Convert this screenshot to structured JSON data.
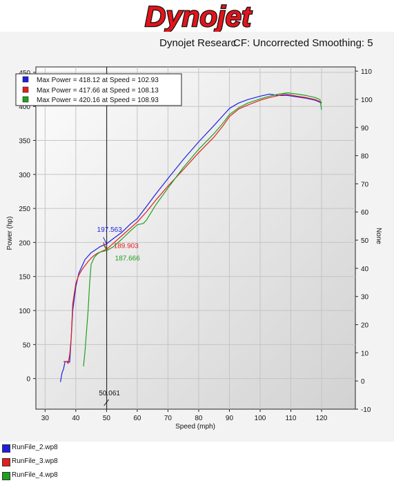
{
  "logo": {
    "text": "Dynojet"
  },
  "header": {
    "left_text": "Dynojet Researc",
    "right_text": "CF: Uncorrected Smoothing: 5"
  },
  "files": [
    {
      "label": "RunFile_2.wp8",
      "color": "#1f1fe0"
    },
    {
      "label": "RunFile_3.wp8",
      "color": "#e01f1f"
    },
    {
      "label": "RunFile_4.wp8",
      "color": "#1fa01f"
    }
  ],
  "chart_data": {
    "type": "line",
    "xlabel": "Speed (mph)",
    "ylabel": "Power (hp)",
    "y2label": "None",
    "xlim": [
      27,
      131
    ],
    "ylim": [
      -45,
      458
    ],
    "y2lim": [
      -10,
      111.5
    ],
    "x_ticks": [
      30,
      40,
      50,
      60,
      70,
      80,
      90,
      100,
      110,
      120
    ],
    "y_ticks": [
      0,
      50,
      100,
      150,
      200,
      250,
      300,
      350,
      400,
      450
    ],
    "y2_ticks": [
      -10,
      0,
      10,
      20,
      30,
      40,
      50,
      60,
      70,
      80,
      90,
      100,
      110
    ],
    "grid": true,
    "legend_position": "top-left",
    "legend": [
      "Max Power = 418.12 at Speed = 102.93",
      "Max Power = 417.66 at Speed = 108.13",
      "Max Power = 420.16 at Speed = 108.93"
    ],
    "cursor": {
      "x": 50.061,
      "label": "50.061"
    },
    "cursor_values": [
      "197.563",
      "189.903",
      "187.666"
    ],
    "series": [
      {
        "color": "#1f1fe0",
        "x": [
          35,
          35.5,
          36,
          36.5,
          37.5,
          38,
          38.5,
          39,
          40,
          41,
          42,
          43,
          44,
          45,
          46,
          47,
          48,
          49,
          50,
          52,
          55,
          58,
          60,
          63,
          66,
          70,
          75,
          80,
          85,
          88,
          90,
          93,
          96,
          100,
          103,
          106,
          109,
          112,
          115,
          118,
          120
        ],
        "y": [
          -5,
          8,
          14,
          25,
          25,
          24,
          60,
          100,
          135,
          155,
          165,
          175,
          180,
          185,
          188,
          191,
          194,
          196,
          198,
          205,
          215,
          228,
          235,
          253,
          271,
          294,
          322,
          348,
          372,
          387,
          397,
          405,
          410,
          415,
          418,
          416,
          416,
          414,
          412,
          409,
          405
        ]
      },
      {
        "color": "#e01f1f",
        "x": [
          36,
          37,
          37.5,
          38,
          38.5,
          39,
          40,
          41,
          42,
          43,
          44,
          45,
          46,
          47,
          48,
          49,
          50,
          52,
          55,
          58,
          60,
          63,
          66,
          70,
          75,
          80,
          85,
          88,
          90,
          93,
          96,
          100,
          103,
          106,
          108,
          110,
          112,
          115,
          118,
          120
        ],
        "y": [
          25,
          25,
          22,
          35,
          60,
          110,
          140,
          152,
          160,
          166,
          172,
          177,
          181,
          184,
          186,
          188,
          190,
          198,
          210,
          222,
          230,
          245,
          262,
          283,
          307,
          332,
          355,
          372,
          385,
          396,
          402,
          409,
          413,
          416,
          418,
          417,
          415,
          413,
          410,
          406
        ]
      },
      {
        "color": "#1fa01f",
        "x": [
          42.5,
          43,
          44,
          44.5,
          45,
          46,
          47,
          48,
          49,
          50,
          52,
          55,
          58,
          60,
          62,
          63,
          66,
          70,
          75,
          80,
          85,
          88,
          90,
          93,
          96,
          100,
          103,
          106,
          109,
          112,
          115,
          118,
          119.5,
          120
        ],
        "y": [
          18,
          40,
          100,
          140,
          168,
          178,
          183,
          186,
          187,
          188,
          193,
          205,
          218,
          226,
          228,
          233,
          255,
          280,
          310,
          337,
          360,
          376,
          388,
          398,
          405,
          411,
          415,
          418,
          420,
          418,
          416,
          413,
          410,
          395
        ]
      }
    ]
  }
}
